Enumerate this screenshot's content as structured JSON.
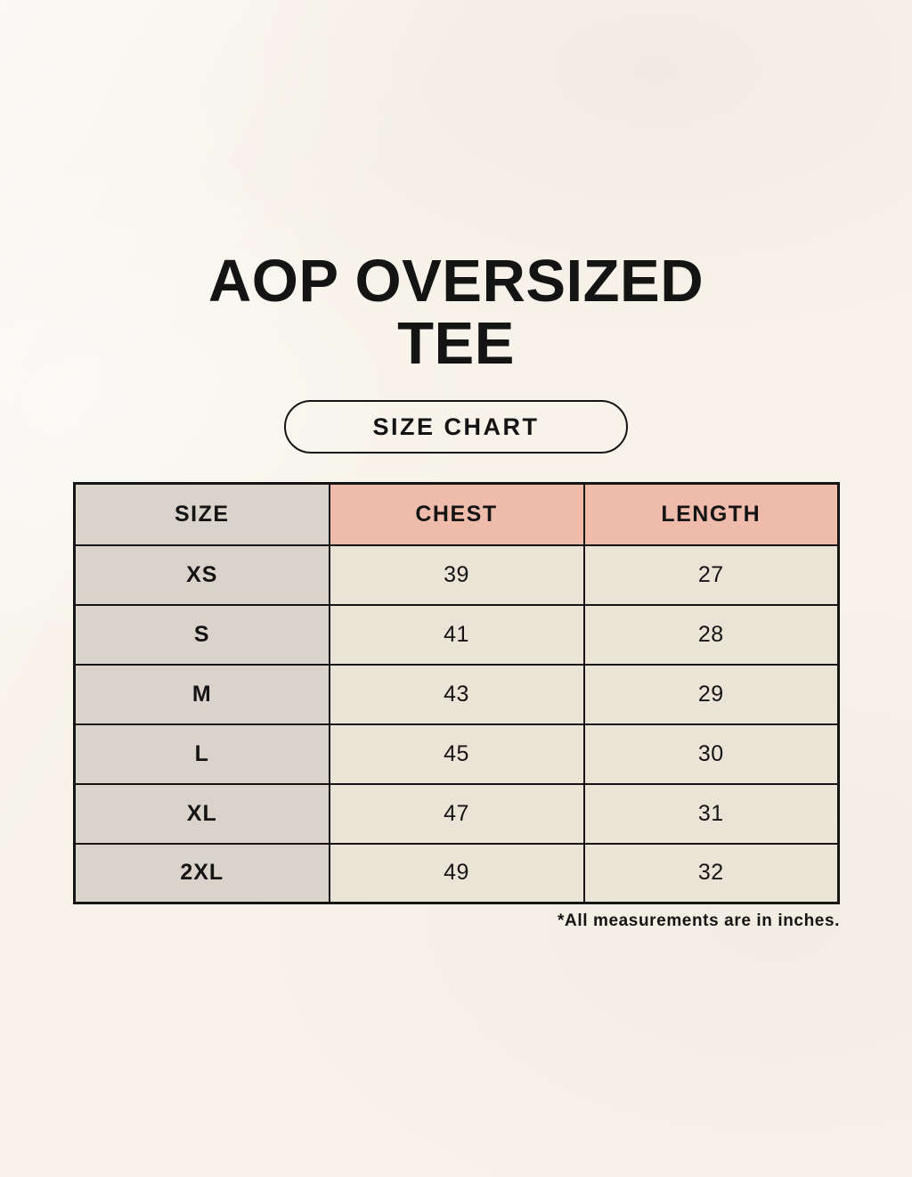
{
  "title_lines": [
    "AOP OVERSIZED",
    "TEE"
  ],
  "badge_label": "SIZE CHART",
  "footnote": "*All measurements are in inches.",
  "chart_data": {
    "type": "table",
    "title": "AOP OVERSIZED TEE",
    "subtitle": "SIZE CHART",
    "columns": [
      "SIZE",
      "CHEST",
      "LENGTH"
    ],
    "rows": [
      [
        "XS",
        39,
        27
      ],
      [
        "S",
        41,
        28
      ],
      [
        "M",
        43,
        29
      ],
      [
        "L",
        45,
        30
      ],
      [
        "XL",
        47,
        31
      ],
      [
        "2XL",
        49,
        32
      ]
    ],
    "units": "inches",
    "note": "*All measurements are in inches."
  },
  "colors": {
    "background": "#f7f3ea",
    "gray": "#dad3cc",
    "pink": "#efbcab",
    "cream": "#eae4d7",
    "border": "#151515",
    "text": "#141414"
  }
}
